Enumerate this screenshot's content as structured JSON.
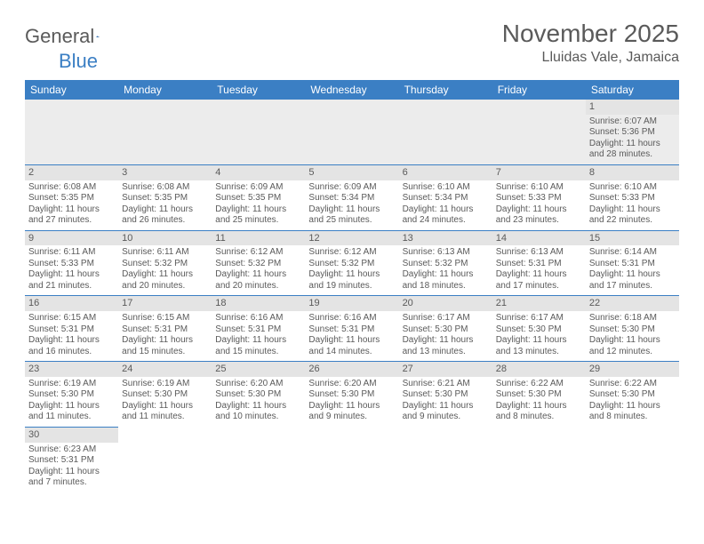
{
  "logo": {
    "text1": "General",
    "text2": "Blue"
  },
  "title": "November 2025",
  "location": "Lluidas Vale, Jamaica",
  "day_headers": [
    "Sunday",
    "Monday",
    "Tuesday",
    "Wednesday",
    "Thursday",
    "Friday",
    "Saturday"
  ],
  "colors": {
    "header_bg": "#3b7fc4",
    "header_text": "#ffffff",
    "daynum_bg": "#e4e4e4",
    "border": "#3b7fc4",
    "text": "#5a5a5a",
    "empty_bg": "#ececec"
  },
  "weeks": [
    [
      null,
      null,
      null,
      null,
      null,
      null,
      {
        "n": "1",
        "sunrise": "Sunrise: 6:07 AM",
        "sunset": "Sunset: 5:36 PM",
        "dl1": "Daylight: 11 hours",
        "dl2": "and 28 minutes."
      }
    ],
    [
      {
        "n": "2",
        "sunrise": "Sunrise: 6:08 AM",
        "sunset": "Sunset: 5:35 PM",
        "dl1": "Daylight: 11 hours",
        "dl2": "and 27 minutes."
      },
      {
        "n": "3",
        "sunrise": "Sunrise: 6:08 AM",
        "sunset": "Sunset: 5:35 PM",
        "dl1": "Daylight: 11 hours",
        "dl2": "and 26 minutes."
      },
      {
        "n": "4",
        "sunrise": "Sunrise: 6:09 AM",
        "sunset": "Sunset: 5:35 PM",
        "dl1": "Daylight: 11 hours",
        "dl2": "and 25 minutes."
      },
      {
        "n": "5",
        "sunrise": "Sunrise: 6:09 AM",
        "sunset": "Sunset: 5:34 PM",
        "dl1": "Daylight: 11 hours",
        "dl2": "and 25 minutes."
      },
      {
        "n": "6",
        "sunrise": "Sunrise: 6:10 AM",
        "sunset": "Sunset: 5:34 PM",
        "dl1": "Daylight: 11 hours",
        "dl2": "and 24 minutes."
      },
      {
        "n": "7",
        "sunrise": "Sunrise: 6:10 AM",
        "sunset": "Sunset: 5:33 PM",
        "dl1": "Daylight: 11 hours",
        "dl2": "and 23 minutes."
      },
      {
        "n": "8",
        "sunrise": "Sunrise: 6:10 AM",
        "sunset": "Sunset: 5:33 PM",
        "dl1": "Daylight: 11 hours",
        "dl2": "and 22 minutes."
      }
    ],
    [
      {
        "n": "9",
        "sunrise": "Sunrise: 6:11 AM",
        "sunset": "Sunset: 5:33 PM",
        "dl1": "Daylight: 11 hours",
        "dl2": "and 21 minutes."
      },
      {
        "n": "10",
        "sunrise": "Sunrise: 6:11 AM",
        "sunset": "Sunset: 5:32 PM",
        "dl1": "Daylight: 11 hours",
        "dl2": "and 20 minutes."
      },
      {
        "n": "11",
        "sunrise": "Sunrise: 6:12 AM",
        "sunset": "Sunset: 5:32 PM",
        "dl1": "Daylight: 11 hours",
        "dl2": "and 20 minutes."
      },
      {
        "n": "12",
        "sunrise": "Sunrise: 6:12 AM",
        "sunset": "Sunset: 5:32 PM",
        "dl1": "Daylight: 11 hours",
        "dl2": "and 19 minutes."
      },
      {
        "n": "13",
        "sunrise": "Sunrise: 6:13 AM",
        "sunset": "Sunset: 5:32 PM",
        "dl1": "Daylight: 11 hours",
        "dl2": "and 18 minutes."
      },
      {
        "n": "14",
        "sunrise": "Sunrise: 6:13 AM",
        "sunset": "Sunset: 5:31 PM",
        "dl1": "Daylight: 11 hours",
        "dl2": "and 17 minutes."
      },
      {
        "n": "15",
        "sunrise": "Sunrise: 6:14 AM",
        "sunset": "Sunset: 5:31 PM",
        "dl1": "Daylight: 11 hours",
        "dl2": "and 17 minutes."
      }
    ],
    [
      {
        "n": "16",
        "sunrise": "Sunrise: 6:15 AM",
        "sunset": "Sunset: 5:31 PM",
        "dl1": "Daylight: 11 hours",
        "dl2": "and 16 minutes."
      },
      {
        "n": "17",
        "sunrise": "Sunrise: 6:15 AM",
        "sunset": "Sunset: 5:31 PM",
        "dl1": "Daylight: 11 hours",
        "dl2": "and 15 minutes."
      },
      {
        "n": "18",
        "sunrise": "Sunrise: 6:16 AM",
        "sunset": "Sunset: 5:31 PM",
        "dl1": "Daylight: 11 hours",
        "dl2": "and 15 minutes."
      },
      {
        "n": "19",
        "sunrise": "Sunrise: 6:16 AM",
        "sunset": "Sunset: 5:31 PM",
        "dl1": "Daylight: 11 hours",
        "dl2": "and 14 minutes."
      },
      {
        "n": "20",
        "sunrise": "Sunrise: 6:17 AM",
        "sunset": "Sunset: 5:30 PM",
        "dl1": "Daylight: 11 hours",
        "dl2": "and 13 minutes."
      },
      {
        "n": "21",
        "sunrise": "Sunrise: 6:17 AM",
        "sunset": "Sunset: 5:30 PM",
        "dl1": "Daylight: 11 hours",
        "dl2": "and 13 minutes."
      },
      {
        "n": "22",
        "sunrise": "Sunrise: 6:18 AM",
        "sunset": "Sunset: 5:30 PM",
        "dl1": "Daylight: 11 hours",
        "dl2": "and 12 minutes."
      }
    ],
    [
      {
        "n": "23",
        "sunrise": "Sunrise: 6:19 AM",
        "sunset": "Sunset: 5:30 PM",
        "dl1": "Daylight: 11 hours",
        "dl2": "and 11 minutes."
      },
      {
        "n": "24",
        "sunrise": "Sunrise: 6:19 AM",
        "sunset": "Sunset: 5:30 PM",
        "dl1": "Daylight: 11 hours",
        "dl2": "and 11 minutes."
      },
      {
        "n": "25",
        "sunrise": "Sunrise: 6:20 AM",
        "sunset": "Sunset: 5:30 PM",
        "dl1": "Daylight: 11 hours",
        "dl2": "and 10 minutes."
      },
      {
        "n": "26",
        "sunrise": "Sunrise: 6:20 AM",
        "sunset": "Sunset: 5:30 PM",
        "dl1": "Daylight: 11 hours",
        "dl2": "and 9 minutes."
      },
      {
        "n": "27",
        "sunrise": "Sunrise: 6:21 AM",
        "sunset": "Sunset: 5:30 PM",
        "dl1": "Daylight: 11 hours",
        "dl2": "and 9 minutes."
      },
      {
        "n": "28",
        "sunrise": "Sunrise: 6:22 AM",
        "sunset": "Sunset: 5:30 PM",
        "dl1": "Daylight: 11 hours",
        "dl2": "and 8 minutes."
      },
      {
        "n": "29",
        "sunrise": "Sunrise: 6:22 AM",
        "sunset": "Sunset: 5:30 PM",
        "dl1": "Daylight: 11 hours",
        "dl2": "and 8 minutes."
      }
    ],
    [
      {
        "n": "30",
        "sunrise": "Sunrise: 6:23 AM",
        "sunset": "Sunset: 5:31 PM",
        "dl1": "Daylight: 11 hours",
        "dl2": "and 7 minutes."
      },
      null,
      null,
      null,
      null,
      null,
      null
    ]
  ]
}
